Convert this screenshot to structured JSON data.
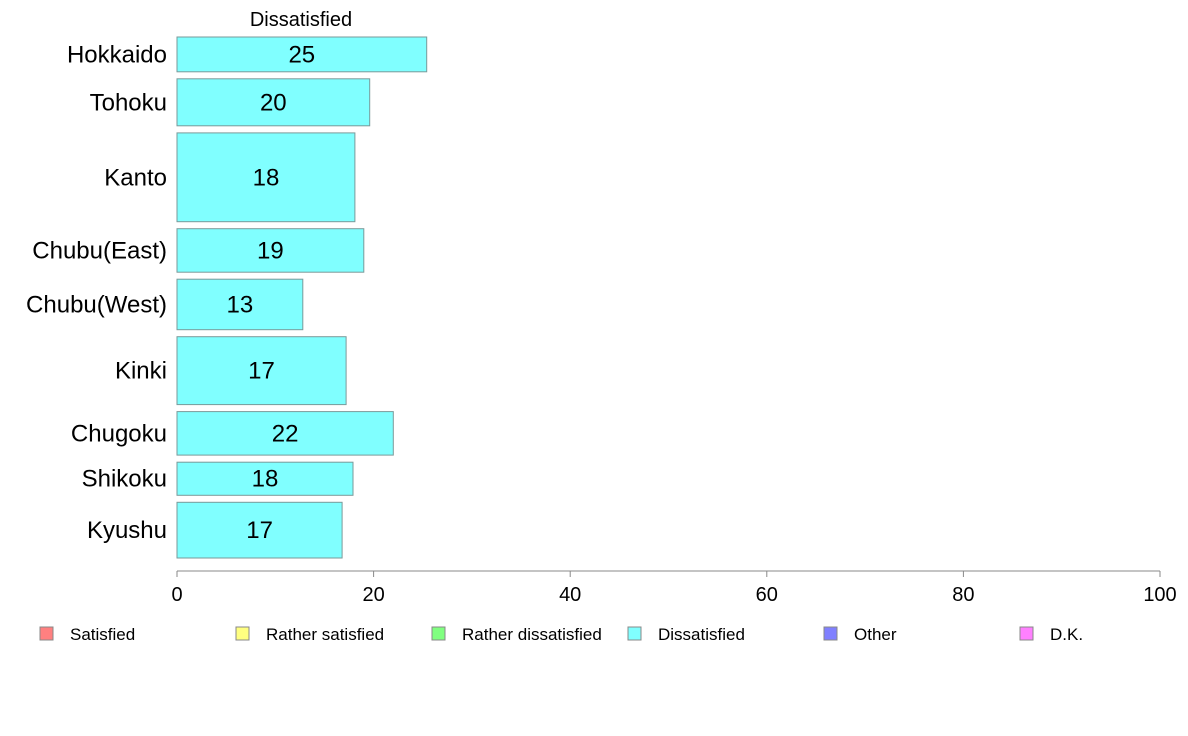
{
  "chart_data": {
    "type": "bar",
    "orientation": "horizontal",
    "series_title": "Dissatisfied",
    "categories": [
      "Hokkaido",
      "Tohoku",
      "Kanto",
      "Chubu(East)",
      "Chubu(West)",
      "Kinki",
      "Chugoku",
      "Shikoku",
      "Kyushu"
    ],
    "series": [
      {
        "name": "Dissatisfied",
        "values": [
          25.4,
          19.6,
          18.1,
          19.0,
          12.8,
          17.2,
          22.0,
          17.9,
          16.8
        ],
        "labels": [
          "25",
          "20",
          "18",
          "19",
          "13",
          "17",
          "22",
          "18",
          "17"
        ]
      }
    ],
    "relative_bar_heights": [
      1.0,
      1.35,
      2.55,
      1.25,
      1.45,
      1.95,
      1.25,
      0.95,
      1.6
    ],
    "xlim": [
      0,
      100
    ],
    "xticks": [
      "0",
      "20",
      "40",
      "60",
      "80",
      "100"
    ],
    "bar_color": "#80ffff",
    "bar_stroke": "#7a9a9a",
    "legend_position": "bottom",
    "legend": [
      {
        "label": "Satisfied",
        "color": "#ff8080"
      },
      {
        "label": "Rather satisfied",
        "color": "#ffff80"
      },
      {
        "label": "Rather dissatisfied",
        "color": "#80ff80"
      },
      {
        "label": "Dissatisfied",
        "color": "#80ffff"
      },
      {
        "label": "Other",
        "color": "#8080ff"
      },
      {
        "label": "D.K.",
        "color": "#ff80ff"
      }
    ]
  }
}
